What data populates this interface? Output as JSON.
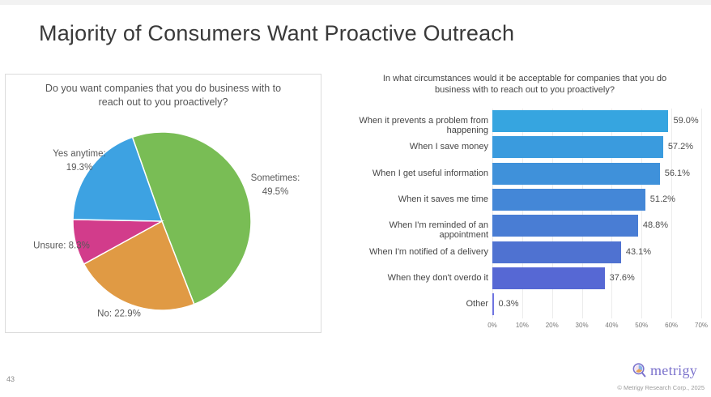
{
  "slide": {
    "title": "Majority of Consumers Want Proactive Outreach",
    "page_number": "43",
    "footer": {
      "brand": "metrigy",
      "copyright": "© Metrigy Research Corp., 2025",
      "brand_color": "#7b72cc"
    }
  },
  "chart_data": [
    {
      "type": "pie",
      "title": "Do you want companies that you do business with to\nreach out to you proactively?",
      "start_angle_deg": -19.4,
      "direction": "clockwise",
      "slices": [
        {
          "label": "Sometimes",
          "value": 49.5,
          "color": "#79bd55",
          "display_label": "Sometimes:\n49.5%"
        },
        {
          "label": "No",
          "value": 22.9,
          "color": "#e09a44",
          "display_label": "No: 22.9%"
        },
        {
          "label": "Unsure",
          "value": 8.3,
          "color": "#d23c8b",
          "display_label": "Unsure: 8.3%"
        },
        {
          "label": "Yes anytime",
          "value": 19.3,
          "color": "#3da2e2",
          "display_label": "Yes anytime:\n19.3%"
        }
      ]
    },
    {
      "type": "bar",
      "orientation": "horizontal",
      "title": "In what circumstances would it be acceptable for companies that you do\nbusiness with to reach out to you proactively?",
      "categories": [
        "When it prevents a problem from happening",
        "When I save money",
        "When I get useful information",
        "When it saves me time",
        "When I'm reminded of an appointment",
        "When I'm notified of a delivery",
        "When they don't overdo it",
        "Other"
      ],
      "values": [
        59.0,
        57.2,
        56.1,
        51.2,
        48.8,
        43.1,
        37.6,
        0.3
      ],
      "value_labels": [
        "59.0%",
        "57.2%",
        "56.1%",
        "51.2%",
        "48.8%",
        "43.1%",
        "37.6%",
        "0.3%"
      ],
      "bar_colors": [
        "#36a5e0",
        "#3a9bde",
        "#3f91da",
        "#4487d7",
        "#497dd4",
        "#4f72d1",
        "#5668d4",
        "#6f74e0"
      ],
      "xlim": [
        0,
        70
      ],
      "ticks": [
        "0%",
        "10%",
        "20%",
        "30%",
        "40%",
        "50%",
        "60%",
        "70%"
      ],
      "grid": true,
      "legend_position": "none"
    }
  ]
}
